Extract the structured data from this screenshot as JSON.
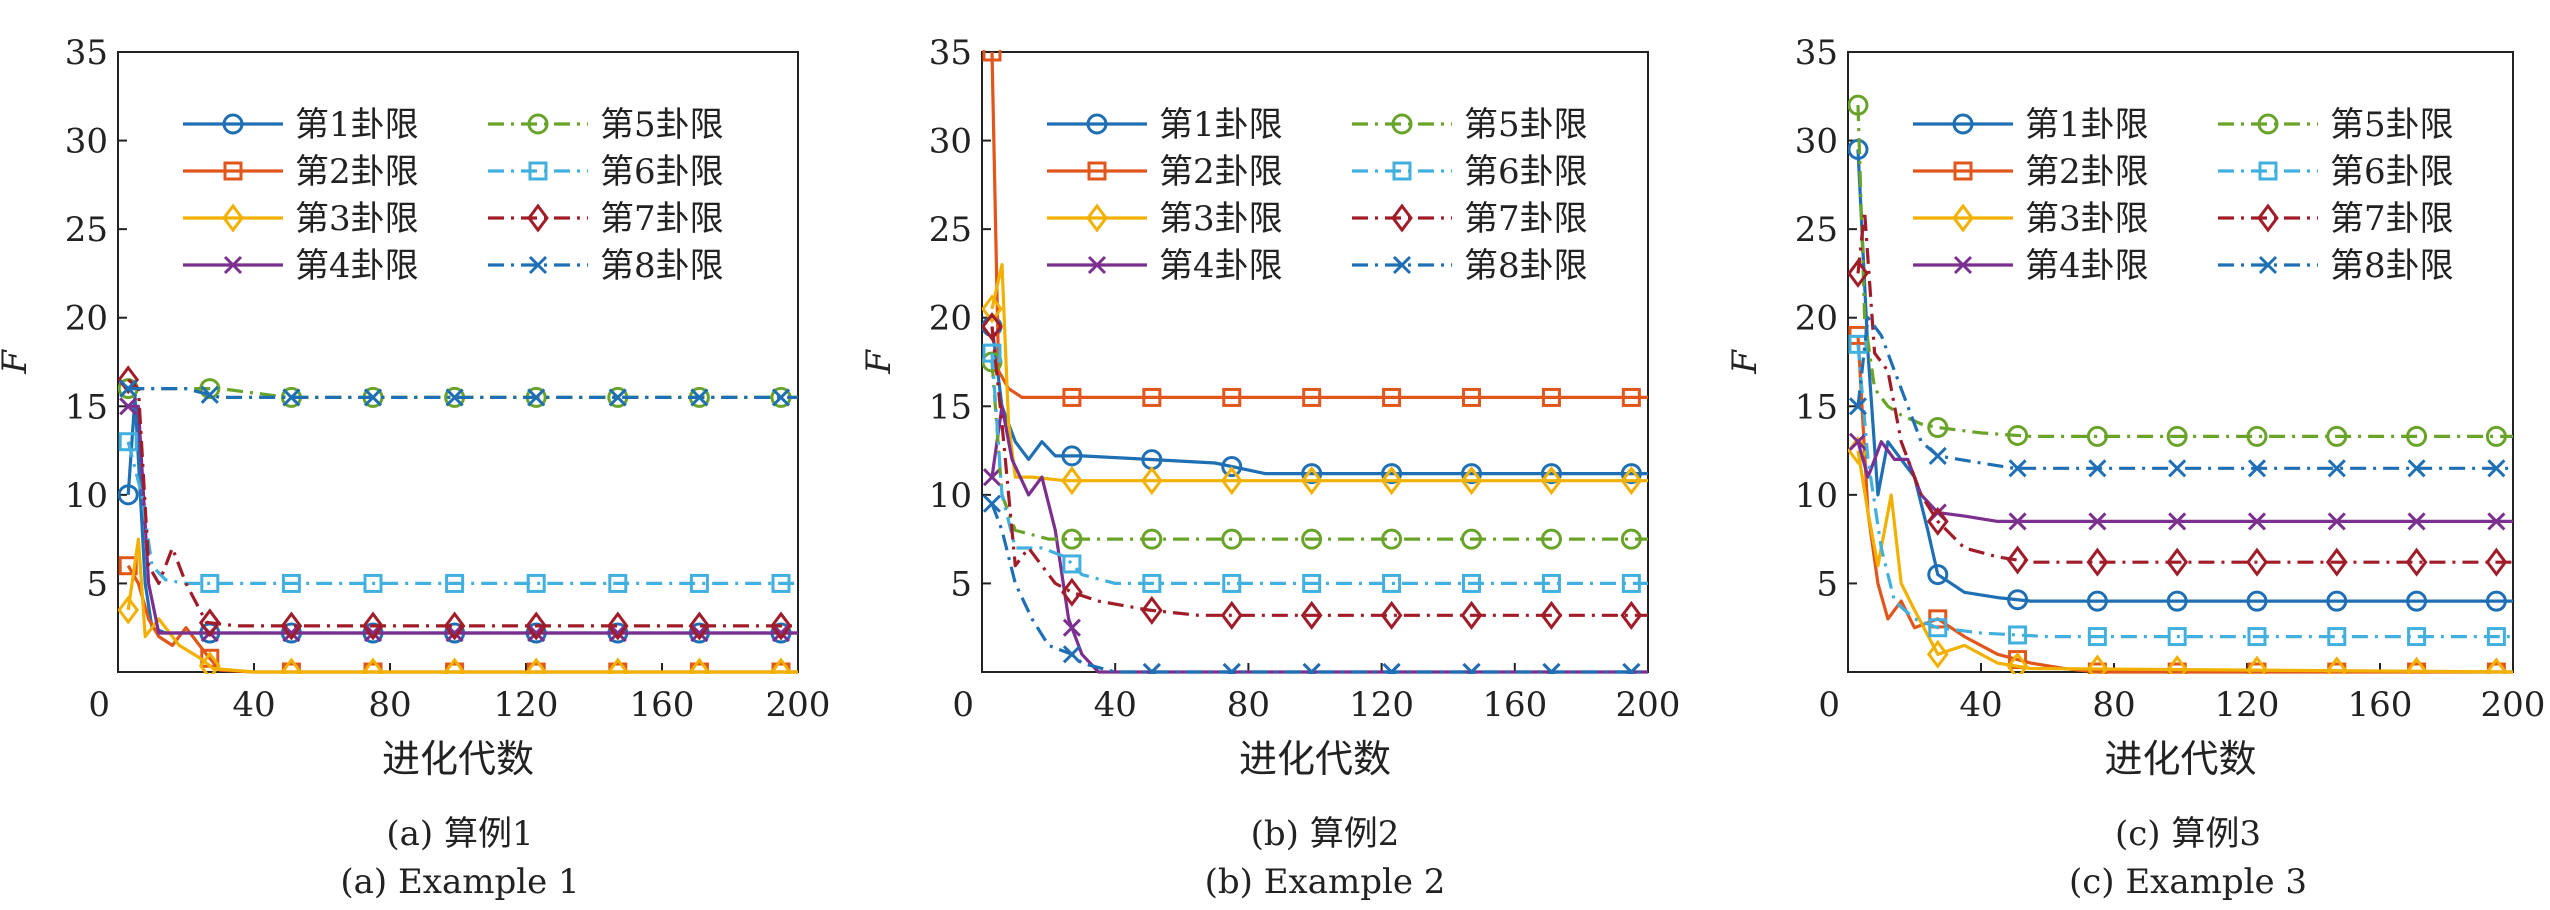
{
  "series_names": [
    "第1卦限",
    "第2卦限",
    "第3卦限",
    "第4卦限",
    "第5卦限",
    "第6卦限",
    "第7卦限",
    "第8卦限"
  ],
  "series_colors": [
    "#1f6fb4",
    "#e0561b",
    "#f2b100",
    "#7b2f8e",
    "#6aa329",
    "#42b0de",
    "#a01c28",
    "#1f6fb4"
  ],
  "series_markers": [
    "circle",
    "square",
    "diamond",
    "x",
    "circle",
    "square",
    "diamond",
    "x"
  ],
  "series_dash": [
    "solid",
    "solid",
    "solid",
    "solid",
    "dashdot",
    "dashdot",
    "dashdot",
    "dashdot"
  ],
  "chart_data": [
    {
      "type": "line",
      "caption_cn": "(a) 算例1",
      "caption_en": "(a) Example 1",
      "xlabel": "进化代数",
      "ylabel": "F",
      "xlim": [
        0,
        200
      ],
      "ylim": [
        0,
        35
      ],
      "xticks": [
        0,
        40,
        80,
        120,
        160,
        200
      ],
      "yticks": [
        5,
        10,
        15,
        20,
        25,
        30,
        35
      ],
      "legend": "top",
      "marker_x": [
        3,
        27,
        51,
        75,
        99,
        123,
        147,
        171,
        195
      ],
      "series": [
        {
          "name": "第1卦限",
          "points": [
            [
              3,
              10
            ],
            [
              5,
              15.5
            ],
            [
              8,
              5
            ],
            [
              10,
              2.5
            ],
            [
              14,
              2.2
            ],
            [
              20,
              2.2
            ],
            [
              30,
              2.2
            ],
            [
              200,
              2.2
            ]
          ]
        },
        {
          "name": "第2卦限",
          "points": [
            [
              3,
              6
            ],
            [
              6,
              5
            ],
            [
              9,
              3
            ],
            [
              12,
              2
            ],
            [
              16,
              1.5
            ],
            [
              20,
              2.5
            ],
            [
              26,
              1
            ],
            [
              30,
              0.1
            ],
            [
              40,
              0
            ],
            [
              200,
              0
            ]
          ]
        },
        {
          "name": "第3卦限",
          "points": [
            [
              3,
              3.5
            ],
            [
              6,
              7.5
            ],
            [
              8,
              2
            ],
            [
              12,
              3
            ],
            [
              18,
              1.5
            ],
            [
              24,
              0.8
            ],
            [
              28,
              0.2
            ],
            [
              40,
              0
            ],
            [
              200,
              0
            ]
          ]
        },
        {
          "name": "第4卦限",
          "points": [
            [
              3,
              15
            ],
            [
              6,
              15
            ],
            [
              9,
              5
            ],
            [
              12,
              2.2
            ],
            [
              20,
              2.2
            ],
            [
              200,
              2.2
            ]
          ]
        },
        {
          "name": "第5卦限",
          "points": [
            [
              3,
              16
            ],
            [
              10,
              16
            ],
            [
              20,
              16
            ],
            [
              30,
              16
            ],
            [
              50,
              15.5
            ],
            [
              200,
              15.5
            ]
          ]
        },
        {
          "name": "第6卦限",
          "points": [
            [
              3,
              13
            ],
            [
              7,
              10
            ],
            [
              10,
              6
            ],
            [
              14,
              5.2
            ],
            [
              20,
              5
            ],
            [
              200,
              5
            ]
          ]
        },
        {
          "name": "第7卦限",
          "points": [
            [
              3,
              16.5
            ],
            [
              6,
              16
            ],
            [
              9,
              6
            ],
            [
              12,
              5
            ],
            [
              16,
              7
            ],
            [
              20,
              5
            ],
            [
              26,
              2.8
            ],
            [
              35,
              2.6
            ],
            [
              200,
              2.6
            ]
          ]
        },
        {
          "name": "第8卦限",
          "points": [
            [
              3,
              16
            ],
            [
              10,
              16
            ],
            [
              20,
              16
            ],
            [
              30,
              15.5
            ],
            [
              200,
              15.5
            ]
          ]
        }
      ]
    },
    {
      "type": "line",
      "caption_cn": "(b) 算例2",
      "caption_en": "(b) Example 2",
      "xlabel": "进化代数",
      "ylabel": "F",
      "xlim": [
        0,
        200
      ],
      "ylim": [
        0,
        35
      ],
      "xticks": [
        0,
        40,
        80,
        120,
        160,
        200
      ],
      "yticks": [
        5,
        10,
        15,
        20,
        25,
        30,
        35
      ],
      "legend": "top",
      "marker_x": [
        3,
        27,
        51,
        75,
        99,
        123,
        147,
        171,
        195
      ],
      "series": [
        {
          "name": "第1卦限",
          "points": [
            [
              3,
              19.5
            ],
            [
              6,
              15
            ],
            [
              10,
              13
            ],
            [
              14,
              12
            ],
            [
              18,
              13
            ],
            [
              22,
              12.2
            ],
            [
              30,
              12.2
            ],
            [
              50,
              12
            ],
            [
              70,
              11.8
            ],
            [
              85,
              11.2
            ],
            [
              100,
              11.2
            ],
            [
              200,
              11.2
            ]
          ]
        },
        {
          "name": "第2卦限",
          "points": [
            [
              3,
              35
            ],
            [
              5,
              17
            ],
            [
              8,
              16
            ],
            [
              12,
              15.5
            ],
            [
              20,
              15.5
            ],
            [
              200,
              15.5
            ]
          ]
        },
        {
          "name": "第3卦限",
          "points": [
            [
              3,
              20.5
            ],
            [
              6,
              23
            ],
            [
              8,
              14
            ],
            [
              10,
              11
            ],
            [
              15,
              11
            ],
            [
              25,
              10.8
            ],
            [
              200,
              10.8
            ]
          ]
        },
        {
          "name": "第4卦限",
          "points": [
            [
              3,
              11
            ],
            [
              6,
              15
            ],
            [
              9,
              12
            ],
            [
              14,
              10
            ],
            [
              18,
              11
            ],
            [
              22,
              8
            ],
            [
              26,
              3
            ],
            [
              30,
              1
            ],
            [
              35,
              0
            ],
            [
              200,
              0
            ]
          ]
        },
        {
          "name": "第5卦限",
          "points": [
            [
              3,
              17.5
            ],
            [
              6,
              10
            ],
            [
              10,
              8
            ],
            [
              20,
              7.5
            ],
            [
              200,
              7.5
            ]
          ]
        },
        {
          "name": "第6卦限",
          "points": [
            [
              3,
              18
            ],
            [
              6,
              10
            ],
            [
              10,
              7
            ],
            [
              18,
              7
            ],
            [
              25,
              6.5
            ],
            [
              30,
              5.5
            ],
            [
              40,
              5
            ],
            [
              200,
              5
            ]
          ]
        },
        {
          "name": "第7卦限",
          "points": [
            [
              3,
              19.5
            ],
            [
              6,
              14
            ],
            [
              10,
              6
            ],
            [
              14,
              7
            ],
            [
              18,
              6
            ],
            [
              22,
              5
            ],
            [
              27,
              4.5
            ],
            [
              35,
              4
            ],
            [
              50,
              3.5
            ],
            [
              65,
              3.2
            ],
            [
              200,
              3.2
            ]
          ]
        },
        {
          "name": "第8卦限",
          "points": [
            [
              3,
              9.5
            ],
            [
              6,
              8
            ],
            [
              10,
              5
            ],
            [
              15,
              3
            ],
            [
              20,
              1.5
            ],
            [
              27,
              1
            ],
            [
              30,
              0.5
            ],
            [
              40,
              0
            ],
            [
              200,
              0
            ]
          ]
        }
      ]
    },
    {
      "type": "line",
      "caption_cn": "(c) 算例3",
      "caption_en": "(c) Example 3",
      "xlabel": "进化代数",
      "ylabel": "F",
      "xlim": [
        0,
        200
      ],
      "ylim": [
        0,
        35
      ],
      "xticks": [
        0,
        40,
        80,
        120,
        160,
        200
      ],
      "yticks": [
        5,
        10,
        15,
        20,
        25,
        30,
        35
      ],
      "legend": "top",
      "marker_x": [
        3,
        27,
        51,
        75,
        99,
        123,
        147,
        171,
        195
      ],
      "series": [
        {
          "name": "第1卦限",
          "points": [
            [
              3,
              29.5
            ],
            [
              6,
              18
            ],
            [
              9,
              10
            ],
            [
              12,
              13
            ],
            [
              16,
              12
            ],
            [
              20,
              11
            ],
            [
              24,
              8
            ],
            [
              27,
              5.5
            ],
            [
              35,
              4.5
            ],
            [
              45,
              4.2
            ],
            [
              55,
              4
            ],
            [
              200,
              4
            ]
          ]
        },
        {
          "name": "第2卦限",
          "points": [
            [
              3,
              19
            ],
            [
              6,
              9
            ],
            [
              9,
              5
            ],
            [
              12,
              3
            ],
            [
              16,
              4
            ],
            [
              20,
              2.5
            ],
            [
              27,
              3
            ],
            [
              35,
              2
            ],
            [
              45,
              1
            ],
            [
              55,
              0.5
            ],
            [
              65,
              0.2
            ],
            [
              75,
              0
            ],
            [
              200,
              0
            ]
          ]
        },
        {
          "name": "第3卦限",
          "points": [
            [
              3,
              12.5
            ],
            [
              6,
              9
            ],
            [
              9,
              6
            ],
            [
              13,
              10
            ],
            [
              16,
              5
            ],
            [
              20,
              3.5
            ],
            [
              27,
              1
            ],
            [
              35,
              1.5
            ],
            [
              45,
              0.5
            ],
            [
              55,
              0.2
            ],
            [
              200,
              0
            ]
          ]
        },
        {
          "name": "第4卦限",
          "points": [
            [
              3,
              13
            ],
            [
              6,
              11
            ],
            [
              10,
              13
            ],
            [
              14,
              12
            ],
            [
              18,
              12
            ],
            [
              22,
              10
            ],
            [
              27,
              9
            ],
            [
              35,
              8.8
            ],
            [
              45,
              8.5
            ],
            [
              200,
              8.5
            ]
          ]
        },
        {
          "name": "第5卦限",
          "points": [
            [
              3,
              32
            ],
            [
              5,
              20
            ],
            [
              8,
              16
            ],
            [
              12,
              15
            ],
            [
              16,
              14.5
            ],
            [
              22,
              14
            ],
            [
              27,
              13.8
            ],
            [
              40,
              13.5
            ],
            [
              55,
              13.3
            ],
            [
              200,
              13.3
            ]
          ]
        },
        {
          "name": "第6卦限",
          "points": [
            [
              3,
              18.5
            ],
            [
              6,
              12
            ],
            [
              10,
              7
            ],
            [
              14,
              4
            ],
            [
              20,
              3
            ],
            [
              27,
              2.5
            ],
            [
              40,
              2.2
            ],
            [
              60,
              2
            ],
            [
              200,
              2
            ]
          ]
        },
        {
          "name": "第7卦限",
          "points": [
            [
              3,
              22.5
            ],
            [
              5,
              26
            ],
            [
              8,
              18
            ],
            [
              12,
              17
            ],
            [
              16,
              13
            ],
            [
              22,
              10
            ],
            [
              27,
              8.5
            ],
            [
              35,
              7
            ],
            [
              45,
              6.5
            ],
            [
              55,
              6.2
            ],
            [
              200,
              6.2
            ]
          ]
        },
        {
          "name": "第8卦限",
          "points": [
            [
              3,
              15
            ],
            [
              6,
              20
            ],
            [
              10,
              19
            ],
            [
              14,
              17
            ],
            [
              18,
              15
            ],
            [
              22,
              13
            ],
            [
              27,
              12.2
            ],
            [
              40,
              11.8
            ],
            [
              50,
              11.5
            ],
            [
              200,
              11.5
            ]
          ]
        }
      ]
    }
  ]
}
